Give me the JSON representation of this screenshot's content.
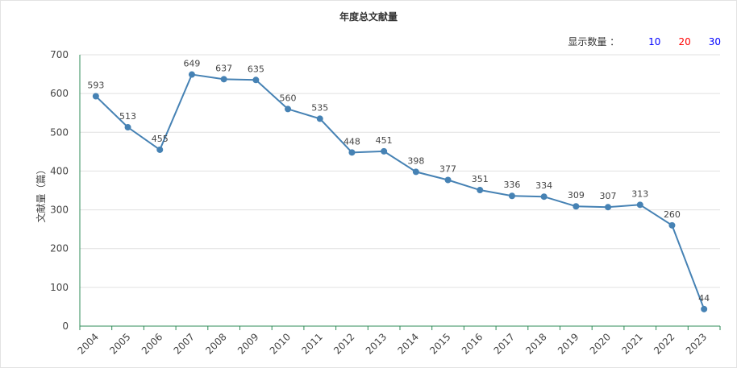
{
  "header": {
    "title": "年度总文献量",
    "display_count_label": "显示数量 ：",
    "display_options": [
      {
        "label": "10",
        "color": "#0000ff"
      },
      {
        "label": "20",
        "color": "#ff0000"
      },
      {
        "label": "30",
        "color": "#0000ff"
      }
    ]
  },
  "chart_data": {
    "type": "line",
    "title": "年度总文献量",
    "xlabel": "",
    "ylabel": "文献量（篇）",
    "categories": [
      "2004",
      "2005",
      "2006",
      "2007",
      "2008",
      "2009",
      "2010",
      "2011",
      "2012",
      "2013",
      "2014",
      "2015",
      "2016",
      "2017",
      "2018",
      "2019",
      "2020",
      "2021",
      "2022",
      "2023"
    ],
    "values": [
      593,
      513,
      455,
      649,
      637,
      635,
      560,
      535,
      448,
      451,
      398,
      377,
      351,
      336,
      334,
      309,
      307,
      313,
      260,
      44
    ],
    "ylim": [
      0,
      700
    ],
    "yticks": [
      0,
      100,
      200,
      300,
      400,
      500,
      600,
      700
    ],
    "grid": true,
    "series_color": "#4682b4"
  }
}
